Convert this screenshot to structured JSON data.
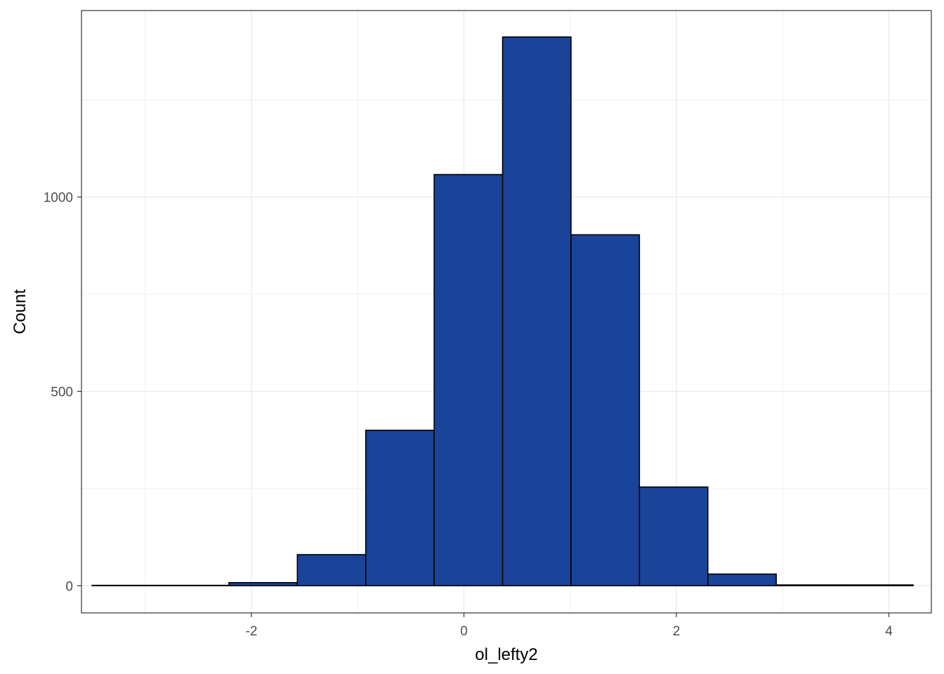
{
  "chart_data": {
    "type": "bar",
    "variant": "histogram",
    "title": "",
    "xlabel": "ol_lefty2",
    "ylabel": "Count",
    "xlim": [
      -3.6,
      4.4
    ],
    "ylim": [
      -70,
      1480
    ],
    "x_ticks": [
      -2,
      0,
      2,
      4
    ],
    "x_tick_labels": [
      "-2",
      "0",
      "2",
      "4"
    ],
    "y_ticks": [
      0,
      500,
      1000
    ],
    "y_tick_labels": [
      "0",
      "500",
      "1000"
    ],
    "bins": [
      {
        "x0": -3.5,
        "x1": -2.856,
        "count": 1
      },
      {
        "x0": -2.856,
        "x1": -2.212,
        "count": 1
      },
      {
        "x0": -2.212,
        "x1": -1.568,
        "count": 8
      },
      {
        "x0": -1.568,
        "x1": -0.924,
        "count": 80
      },
      {
        "x0": -0.924,
        "x1": -0.28,
        "count": 400
      },
      {
        "x0": -0.28,
        "x1": 0.364,
        "count": 1058
      },
      {
        "x0": 0.364,
        "x1": 1.008,
        "count": 1412
      },
      {
        "x0": 1.008,
        "x1": 1.652,
        "count": 903
      },
      {
        "x0": 1.652,
        "x1": 2.296,
        "count": 254
      },
      {
        "x0": 2.296,
        "x1": 2.94,
        "count": 30
      },
      {
        "x0": 2.94,
        "x1": 3.584,
        "count": 2
      },
      {
        "x0": 3.584,
        "x1": 4.228,
        "count": 2
      }
    ],
    "grid": true,
    "legend": "none",
    "colors": {
      "fill": "#1a4499",
      "outline": "#000000",
      "grid": "#ebebeb",
      "panel_border": "#333333"
    }
  }
}
